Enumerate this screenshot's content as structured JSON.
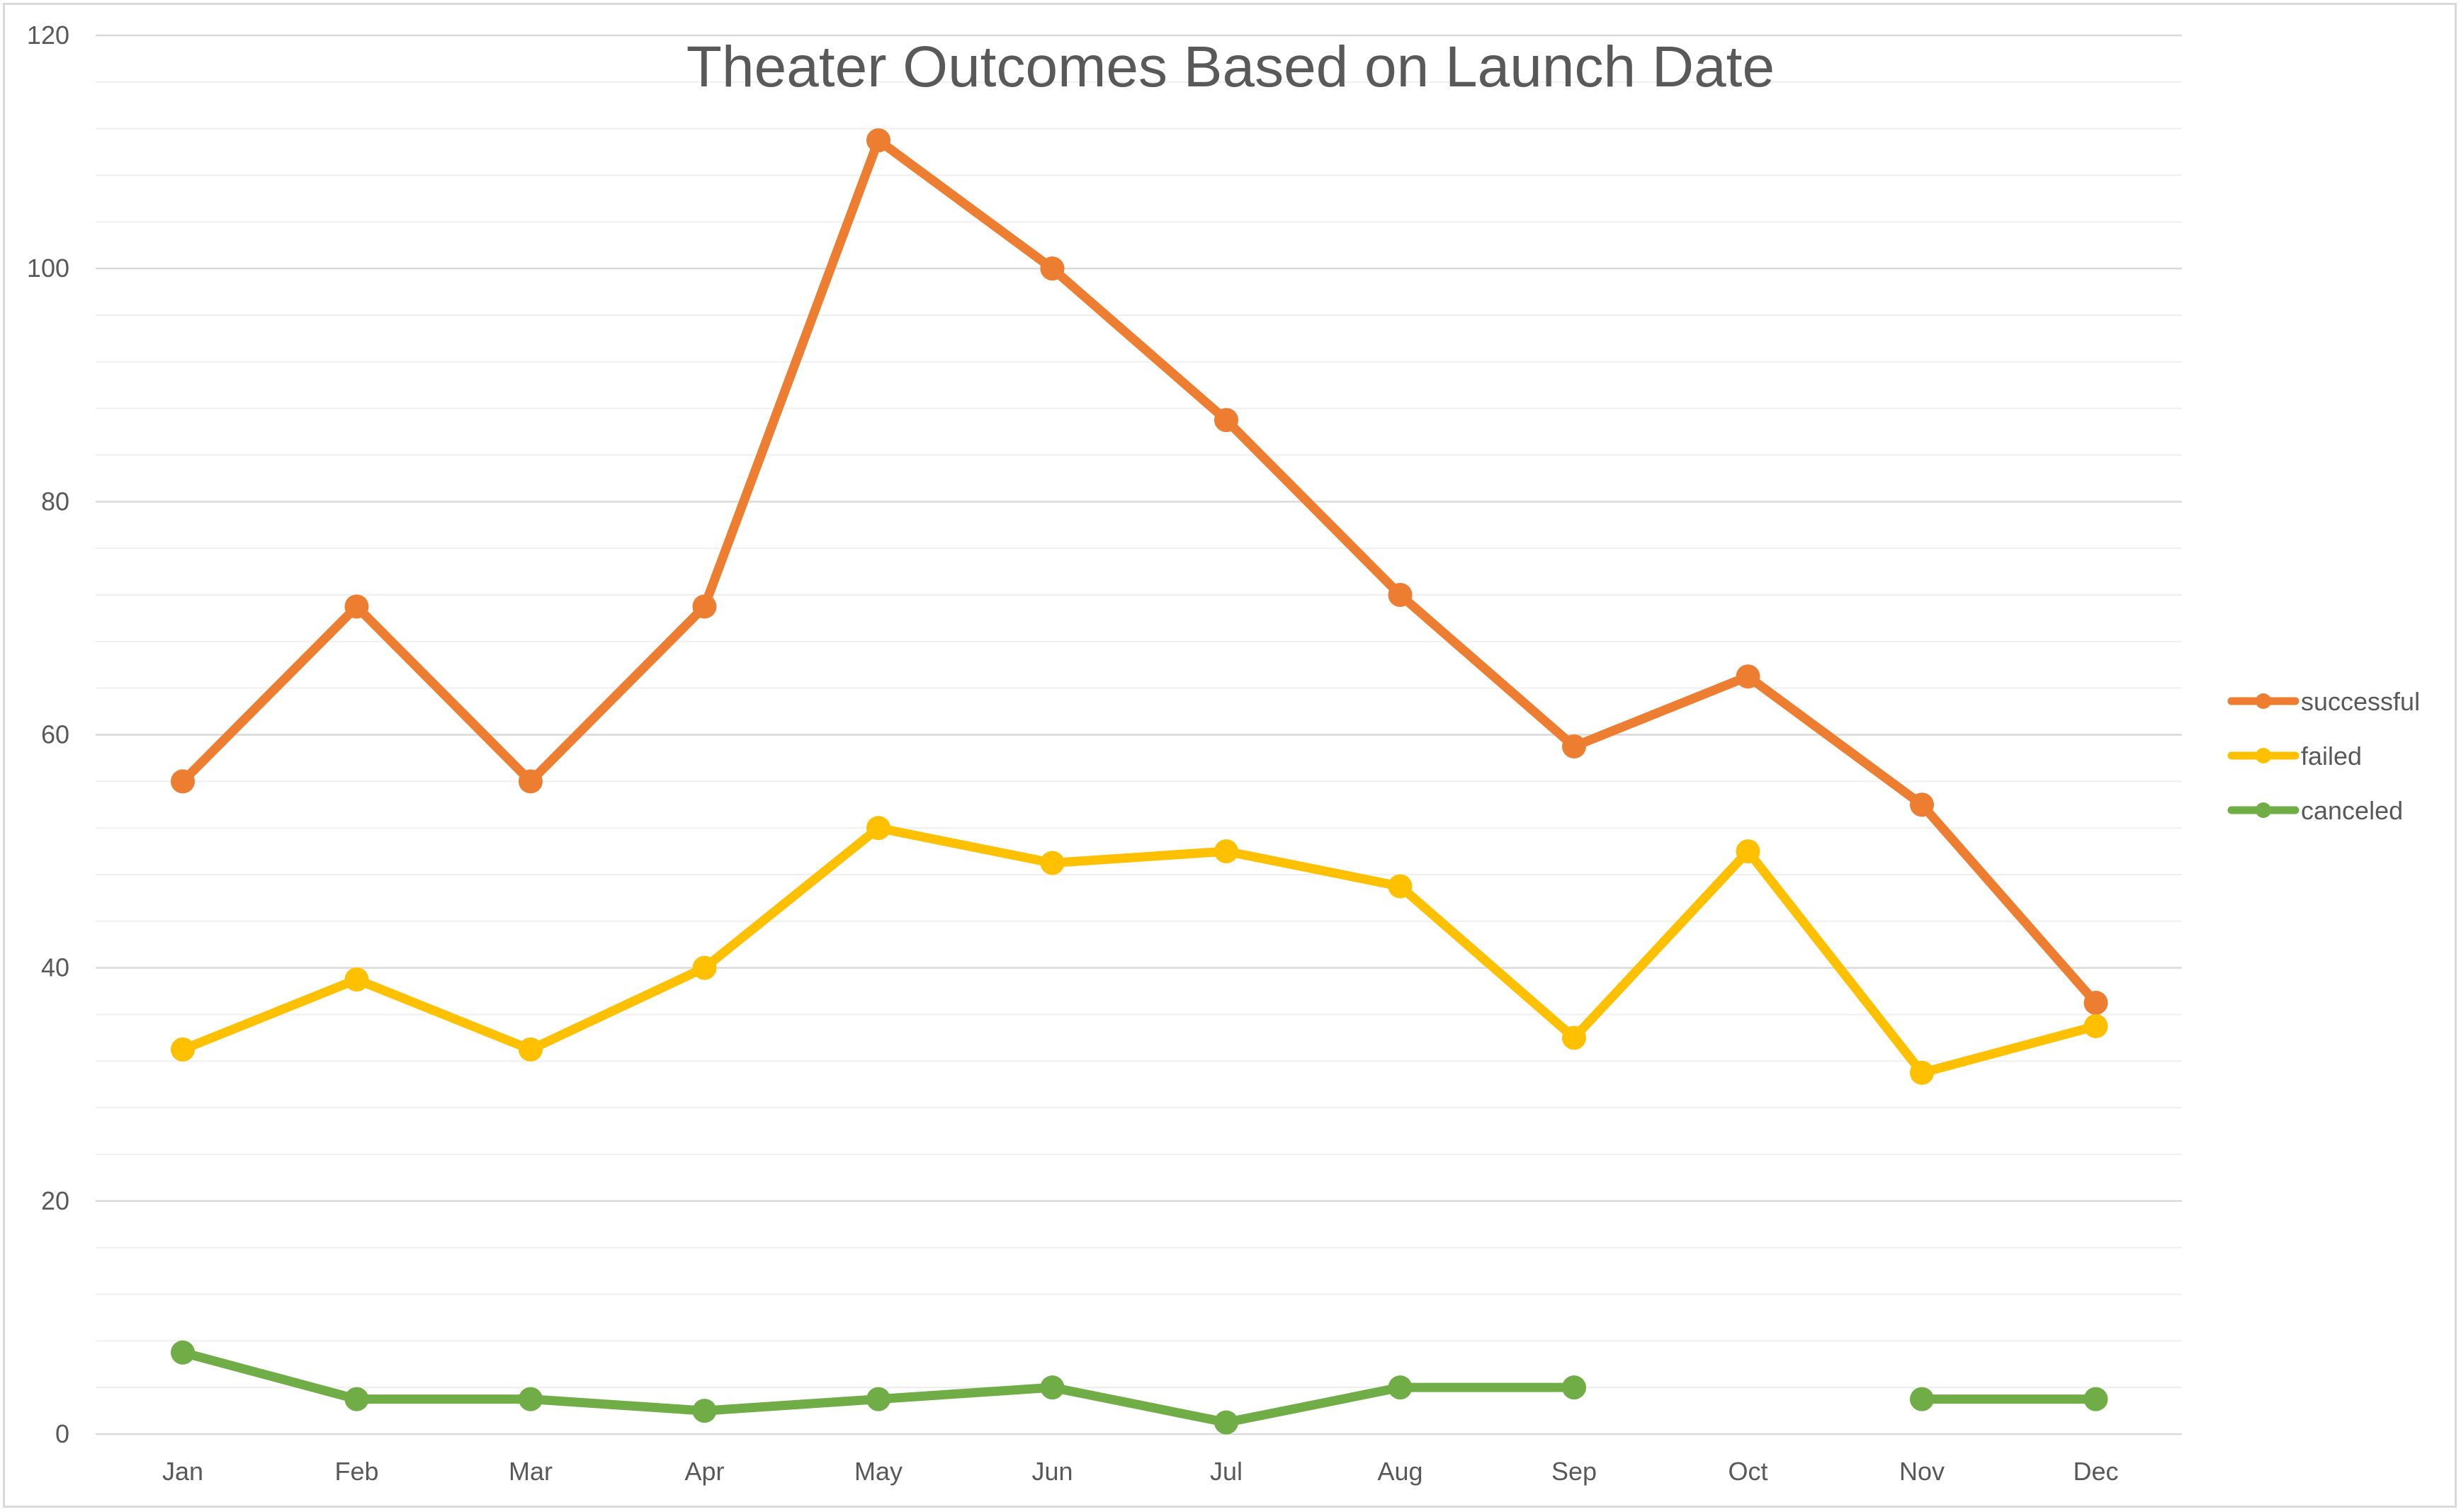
{
  "chart_data": {
    "type": "line",
    "title": "Theater Outcomes Based on Launch Date",
    "xlabel": "",
    "ylabel": "",
    "categories": [
      "Jan",
      "Feb",
      "Mar",
      "Apr",
      "May",
      "Jun",
      "Jul",
      "Aug",
      "Sep",
      "Oct",
      "Nov",
      "Dec"
    ],
    "ylim": [
      0,
      120
    ],
    "yticks": [
      "0",
      "20",
      "40",
      "60",
      "80",
      "100",
      "120"
    ],
    "grid": "major and minor horizontal",
    "legend_position": "right",
    "series": [
      {
        "name": "successful",
        "color": "#ed7d31",
        "values": [
          56,
          71,
          56,
          71,
          111,
          100,
          87,
          72,
          59,
          65,
          54,
          37
        ]
      },
      {
        "name": "failed",
        "color": "#ffc000",
        "values": [
          33,
          39,
          33,
          40,
          52,
          49,
          50,
          47,
          34,
          50,
          31,
          35
        ]
      },
      {
        "name": "canceled",
        "color": "#70ad47",
        "values": [
          7,
          3,
          3,
          2,
          3,
          4,
          1,
          4,
          4,
          null,
          3,
          3
        ]
      }
    ]
  }
}
